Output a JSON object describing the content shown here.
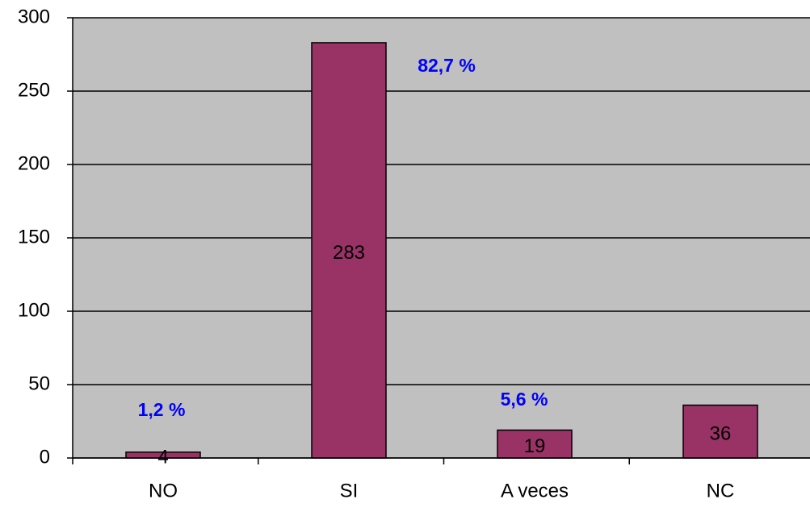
{
  "chart_data": {
    "type": "bar",
    "categories": [
      "NO",
      "SI",
      "A veces",
      "NC"
    ],
    "values": [
      4,
      283,
      19,
      36
    ],
    "color": "#993366",
    "ylim": [
      0,
      300
    ],
    "yticks": [
      0,
      50,
      100,
      150,
      200,
      250,
      300
    ],
    "grid": true,
    "annotations": [
      "1,2 %",
      "82,7 %",
      "5,6 %"
    ]
  }
}
